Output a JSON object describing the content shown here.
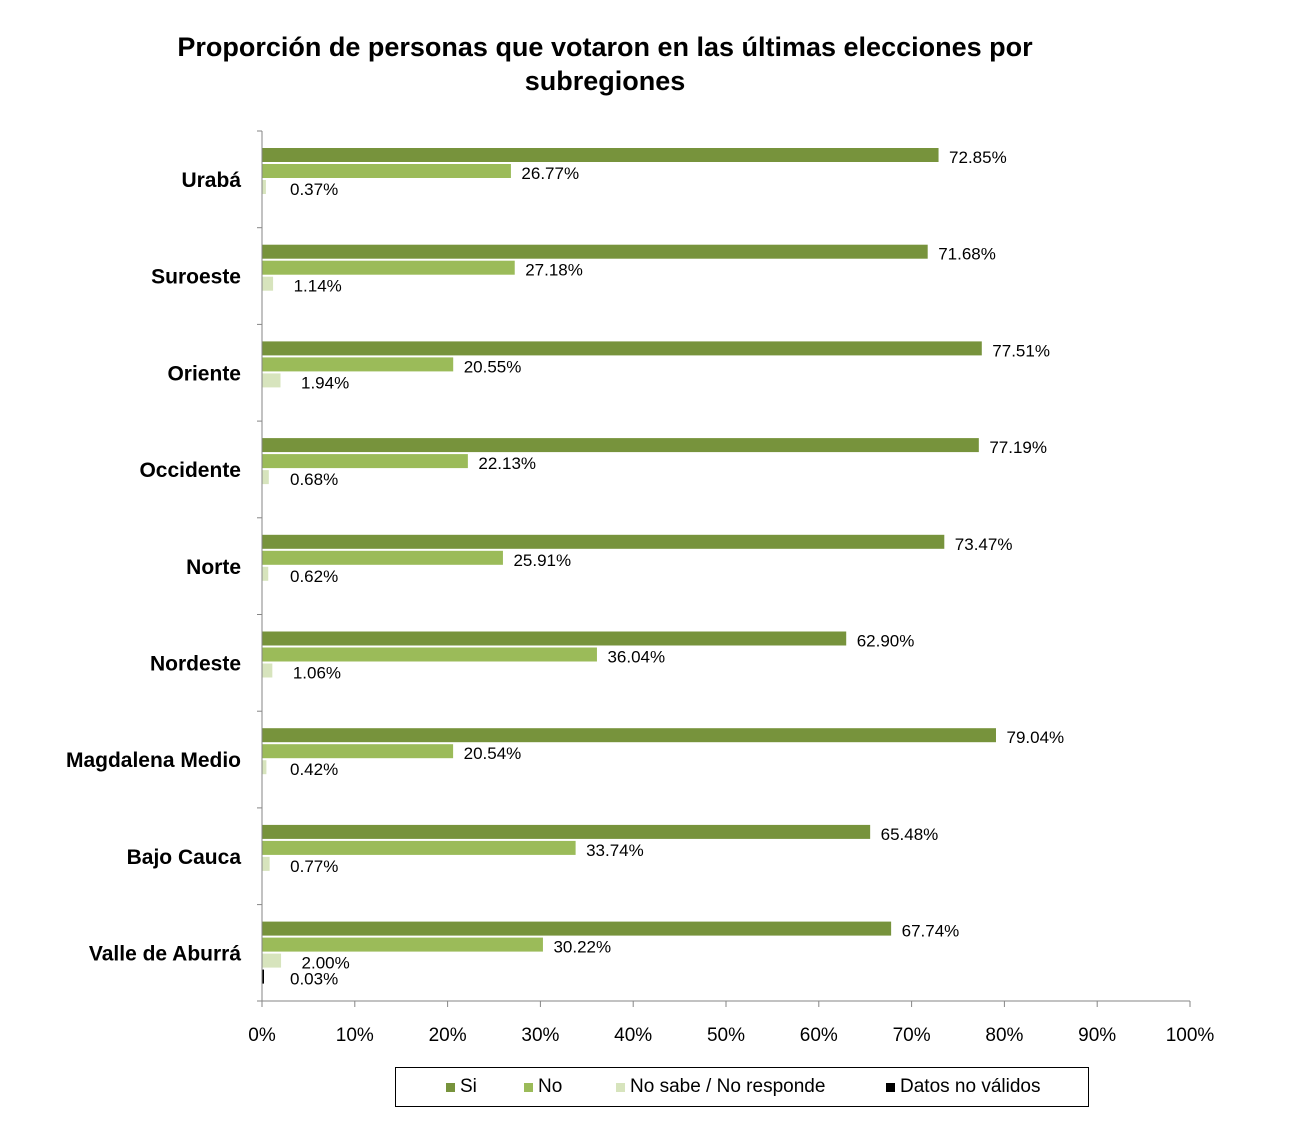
{
  "chart_data": {
    "type": "bar",
    "orientation": "horizontal",
    "title": "Proporción de personas que votaron en las últimas elecciones por subregiones",
    "title_lines": [
      "Proporción de personas que votaron en las últimas elecciones por",
      "subregiones"
    ],
    "xlabel": "",
    "ylabel": "",
    "xlim": [
      0,
      100
    ],
    "x_ticks": [
      "0%",
      "10%",
      "20%",
      "30%",
      "40%",
      "50%",
      "60%",
      "70%",
      "80%",
      "90%",
      "100%"
    ],
    "grid": false,
    "legend_position": "bottom",
    "categories": [
      "Urabá",
      "Suroeste",
      "Oriente",
      "Occidente",
      "Norte",
      "Nordeste",
      "Magdalena Medio",
      "Bajo Cauca",
      "Valle de Aburrá"
    ],
    "series": [
      {
        "name": "Si",
        "color": "#77933c",
        "values": [
          72.85,
          71.68,
          77.51,
          77.19,
          73.47,
          62.9,
          79.04,
          65.48,
          67.74
        ],
        "labels": [
          "72.85%",
          "71.68%",
          "77.51%",
          "77.19%",
          "73.47%",
          "62.90%",
          "79.04%",
          "65.48%",
          "67.74%"
        ]
      },
      {
        "name": "No",
        "color": "#9bbb59",
        "values": [
          26.77,
          27.18,
          20.55,
          22.13,
          25.91,
          36.04,
          20.54,
          33.74,
          30.22
        ],
        "labels": [
          "26.77%",
          "27.18%",
          "20.55%",
          "22.13%",
          "25.91%",
          "36.04%",
          "20.54%",
          "33.74%",
          "30.22%"
        ]
      },
      {
        "name": "No sabe / No responde",
        "color": "#d7e4bd",
        "values": [
          0.37,
          1.14,
          1.94,
          0.68,
          0.62,
          1.06,
          0.42,
          0.77,
          2.0
        ],
        "labels": [
          "0.37%",
          "1.14%",
          "1.94%",
          "0.68%",
          "0.62%",
          "1.06%",
          "0.42%",
          "0.77%",
          "2.00%"
        ]
      },
      {
        "name": "Datos no válidos",
        "color": "#000000",
        "values": [
          null,
          null,
          null,
          null,
          null,
          null,
          null,
          null,
          0.03
        ],
        "labels": [
          null,
          null,
          null,
          null,
          null,
          null,
          null,
          null,
          "0.03%"
        ]
      }
    ]
  }
}
